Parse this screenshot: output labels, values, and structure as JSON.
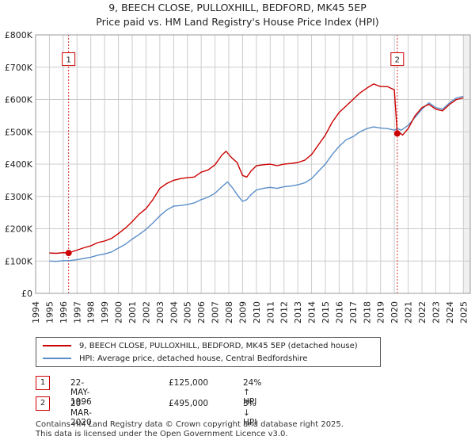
{
  "title_line1": "9, BEECH CLOSE, PULLOXHILL, BEDFORD, MK45 5EP",
  "title_line2": "Price paid vs. HM Land Registry's House Price Index (HPI)",
  "colors": {
    "property": "#cc0000",
    "hpi": "#5b8ec9",
    "grid": "#cccccc",
    "plot_bg": "#ffffff",
    "marker": "#cc0000"
  },
  "legend": {
    "property_label": "9, BEECH CLOSE, PULLOXHILL, BEDFORD, MK45 5EP (detached house)",
    "hpi_label": "HPI: Average price, detached house, Central Bedfordshire"
  },
  "transactions": [
    {
      "num": "1",
      "date": "22-MAY-1996",
      "price": "£125,000",
      "hpi_diff": "24% ↑ HPI"
    },
    {
      "num": "2",
      "date": "20-MAR-2020",
      "price": "£495,000",
      "hpi_diff": "3% ↓ HPI"
    }
  ],
  "footer": {
    "line1": "Contains HM Land Registry data © Crown copyright and database right 2025.",
    "line2": "This data is licensed under the Open Government Licence v3.0."
  },
  "chart_data": {
    "type": "line",
    "xlim": [
      1994,
      2025.5
    ],
    "ylim": [
      0,
      800000
    ],
    "x_ticks": [
      "1994",
      "1995",
      "1996",
      "1997",
      "1998",
      "1999",
      "2000",
      "2001",
      "2002",
      "2003",
      "2004",
      "2005",
      "2006",
      "2007",
      "2008",
      "2009",
      "2010",
      "2011",
      "2012",
      "2013",
      "2014",
      "2015",
      "2016",
      "2017",
      "2018",
      "2019",
      "2020",
      "2021",
      "2022",
      "2023",
      "2024",
      "2025"
    ],
    "y_ticks": [
      {
        "value": 0,
        "label": "£0"
      },
      {
        "value": 100000,
        "label": "£100K"
      },
      {
        "value": 200000,
        "label": "£200K"
      },
      {
        "value": 300000,
        "label": "£300K"
      },
      {
        "value": 400000,
        "label": "£400K"
      },
      {
        "value": 500000,
        "label": "£500K"
      },
      {
        "value": 600000,
        "label": "£600K"
      },
      {
        "value": 700000,
        "label": "£700K"
      },
      {
        "value": 800000,
        "label": "£800K"
      }
    ],
    "series": [
      {
        "name": "9, BEECH CLOSE, PULLOXHILL, BEDFORD, MK45 5EP (detached house)",
        "x": [
          1995.0,
          1995.5,
          1996.0,
          1996.39,
          1996.8,
          1997.5,
          1998.0,
          1998.5,
          1999.0,
          1999.5,
          2000.0,
          2000.5,
          2001.0,
          2001.5,
          2002.0,
          2002.5,
          2003.0,
          2003.5,
          2004.0,
          2004.5,
          2005.0,
          2005.5,
          2006.0,
          2006.5,
          2007.0,
          2007.5,
          2007.8,
          2008.2,
          2008.6,
          2009.0,
          2009.3,
          2009.6,
          2010.0,
          2010.5,
          2011.0,
          2011.5,
          2012.0,
          2012.5,
          2013.0,
          2013.5,
          2014.0,
          2014.5,
          2015.0,
          2015.5,
          2016.0,
          2016.5,
          2017.0,
          2017.5,
          2018.0,
          2018.5,
          2019.0,
          2019.5,
          2020.0,
          2020.21,
          2020.3,
          2020.6,
          2021.0,
          2021.5,
          2022.0,
          2022.5,
          2023.0,
          2023.5,
          2024.0,
          2024.5,
          2025.0
        ],
        "values": [
          125000,
          124000,
          126000,
          125000,
          131000,
          141000,
          147000,
          157000,
          162000,
          170000,
          185000,
          202000,
          222000,
          245000,
          262000,
          290000,
          325000,
          340000,
          350000,
          355000,
          358000,
          360000,
          375000,
          382000,
          398000,
          428000,
          440000,
          420000,
          405000,
          365000,
          360000,
          378000,
          395000,
          398000,
          400000,
          395000,
          400000,
          402000,
          405000,
          412000,
          430000,
          460000,
          490000,
          530000,
          560000,
          580000,
          600000,
          620000,
          635000,
          648000,
          640000,
          640000,
          630000,
          495000,
          500000,
          490000,
          510000,
          550000,
          575000,
          585000,
          570000,
          565000,
          585000,
          600000,
          605000
        ]
      },
      {
        "name": "HPI: Average price, detached house, Central Bedfordshire",
        "x": [
          1995.0,
          1995.5,
          1996.0,
          1996.39,
          1997.0,
          1997.5,
          1998.0,
          1998.5,
          1999.0,
          1999.5,
          2000.0,
          2000.5,
          2001.0,
          2001.5,
          2002.0,
          2002.5,
          2003.0,
          2003.5,
          2004.0,
          2004.5,
          2005.0,
          2005.5,
          2006.0,
          2006.5,
          2007.0,
          2007.5,
          2007.9,
          2008.3,
          2008.7,
          2009.0,
          2009.3,
          2009.6,
          2010.0,
          2010.5,
          2011.0,
          2011.5,
          2012.0,
          2012.5,
          2013.0,
          2013.5,
          2014.0,
          2014.5,
          2015.0,
          2015.5,
          2016.0,
          2016.5,
          2017.0,
          2017.5,
          2018.0,
          2018.5,
          2019.0,
          2019.5,
          2020.0,
          2020.21,
          2020.5,
          2021.0,
          2021.5,
          2022.0,
          2022.5,
          2023.0,
          2023.5,
          2024.0,
          2024.5,
          2025.0
        ],
        "values": [
          100000,
          99000,
          101000,
          101000,
          104000,
          108000,
          112000,
          118000,
          122000,
          128000,
          140000,
          152000,
          168000,
          182000,
          198000,
          218000,
          240000,
          258000,
          270000,
          272000,
          275000,
          280000,
          290000,
          298000,
          310000,
          330000,
          345000,
          325000,
          300000,
          285000,
          290000,
          305000,
          320000,
          325000,
          328000,
          325000,
          330000,
          332000,
          336000,
          342000,
          355000,
          378000,
          400000,
          430000,
          455000,
          475000,
          485000,
          500000,
          510000,
          515000,
          512000,
          510000,
          505000,
          510000,
          505000,
          520000,
          545000,
          570000,
          590000,
          575000,
          570000,
          590000,
          605000,
          610000
        ]
      }
    ],
    "sales": [
      {
        "label": "1",
        "x": 1996.39,
        "y": 125000
      },
      {
        "label": "2",
        "x": 2020.21,
        "y": 495000
      }
    ]
  }
}
